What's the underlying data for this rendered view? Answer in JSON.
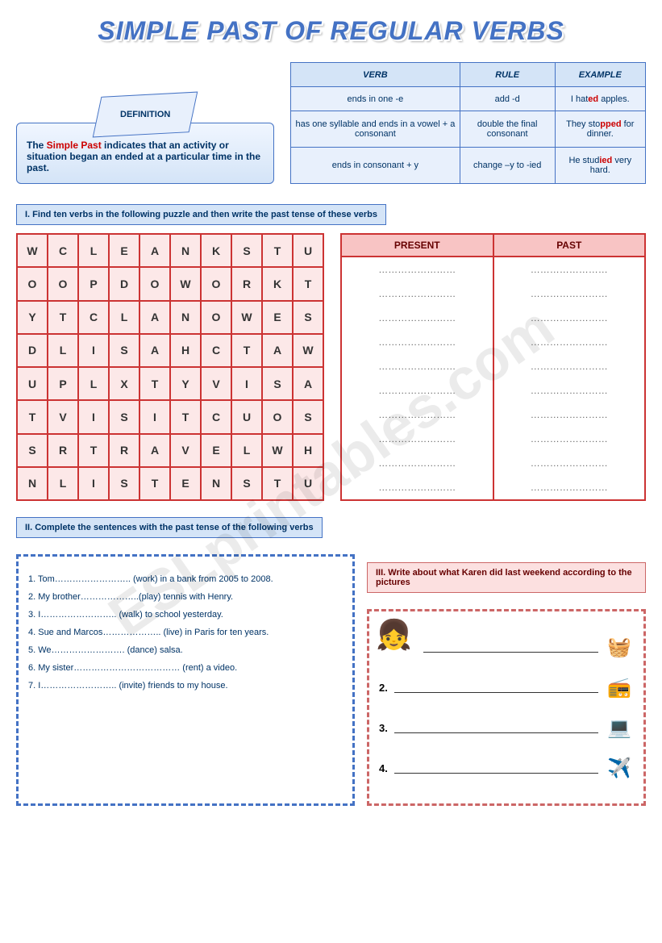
{
  "title": "SIMPLE PAST OF REGULAR VERBS",
  "watermark": "ESLprintables.com",
  "definition": {
    "label": "DEFINITION",
    "text_pre": "The ",
    "text_red": "Simple Past",
    "text_post": " indicates that an activity or situation began an ended at a particular time in the past."
  },
  "rules": {
    "headers": [
      "VERB",
      "RULE",
      "EXAMPLE"
    ],
    "rows": [
      {
        "verb": "ends in one -e",
        "rule": "add -d",
        "example_pre": "I hat",
        "example_red": "ed",
        "example_post": " apples."
      },
      {
        "verb": "has one syllable and ends in a vowel + a consonant",
        "rule": "double the final consonant",
        "example_pre": "They sto",
        "example_red": "pped",
        "example_post": " for dinner."
      },
      {
        "verb": "ends in consonant + y",
        "rule": "change –y to -ied",
        "example_pre": "He stud",
        "example_red": "ied",
        "example_post": " very hard."
      }
    ]
  },
  "ex1": {
    "instruction": "I.    Find ten  verbs in the following puzzle and then write the past tense of these verbs",
    "puzzle": [
      [
        "W",
        "C",
        "L",
        "E",
        "A",
        "N",
        "K",
        "S",
        "T",
        "U"
      ],
      [
        "O",
        "O",
        "P",
        "D",
        "O",
        "W",
        "O",
        "R",
        "K",
        "T"
      ],
      [
        "Y",
        "T",
        "C",
        "L",
        "A",
        "N",
        "O",
        "W",
        "E",
        "S"
      ],
      [
        "D",
        "L",
        "I",
        "S",
        "A",
        "H",
        "C",
        "T",
        "A",
        "W"
      ],
      [
        "U",
        "P",
        "L",
        "X",
        "T",
        "Y",
        "V",
        "I",
        "S",
        "A"
      ],
      [
        "T",
        "V",
        "I",
        "S",
        "I",
        "T",
        "C",
        "U",
        "O",
        "S"
      ],
      [
        "S",
        "R",
        "T",
        "R",
        "A",
        "V",
        "E",
        "L",
        "W",
        "H"
      ],
      [
        "N",
        "L",
        "I",
        "S",
        "T",
        "E",
        "N",
        "S",
        "T",
        "U"
      ]
    ],
    "answer_headers": [
      "PRESENT",
      "PAST"
    ],
    "blank": "……………………",
    "blank_rows": 10
  },
  "ex2": {
    "instruction": "II.    Complete the sentences with the past tense of the following verbs",
    "items": [
      "1.   Tom…………………….. (work) in a bank from 2005 to 2008.",
      "2.   My brother………………..(play) tennis with Henry.",
      "3.   I…………………….. (walk) to school yesterday.",
      "4.   Sue and Marcos……………….. (live) in Paris for ten years.",
      "5.   We……………………. (dance) salsa.",
      "6.   My sister……………………………… (rent) a video.",
      "7.   I…………………….. (invite) friends to my house."
    ]
  },
  "ex3": {
    "instruction": "III.  Write about what Karen did last weekend according to the pictures",
    "lines": [
      "2.",
      "3.",
      "4."
    ],
    "icons": [
      "👧",
      "🧺",
      "📻",
      "💻",
      "✈️"
    ]
  }
}
